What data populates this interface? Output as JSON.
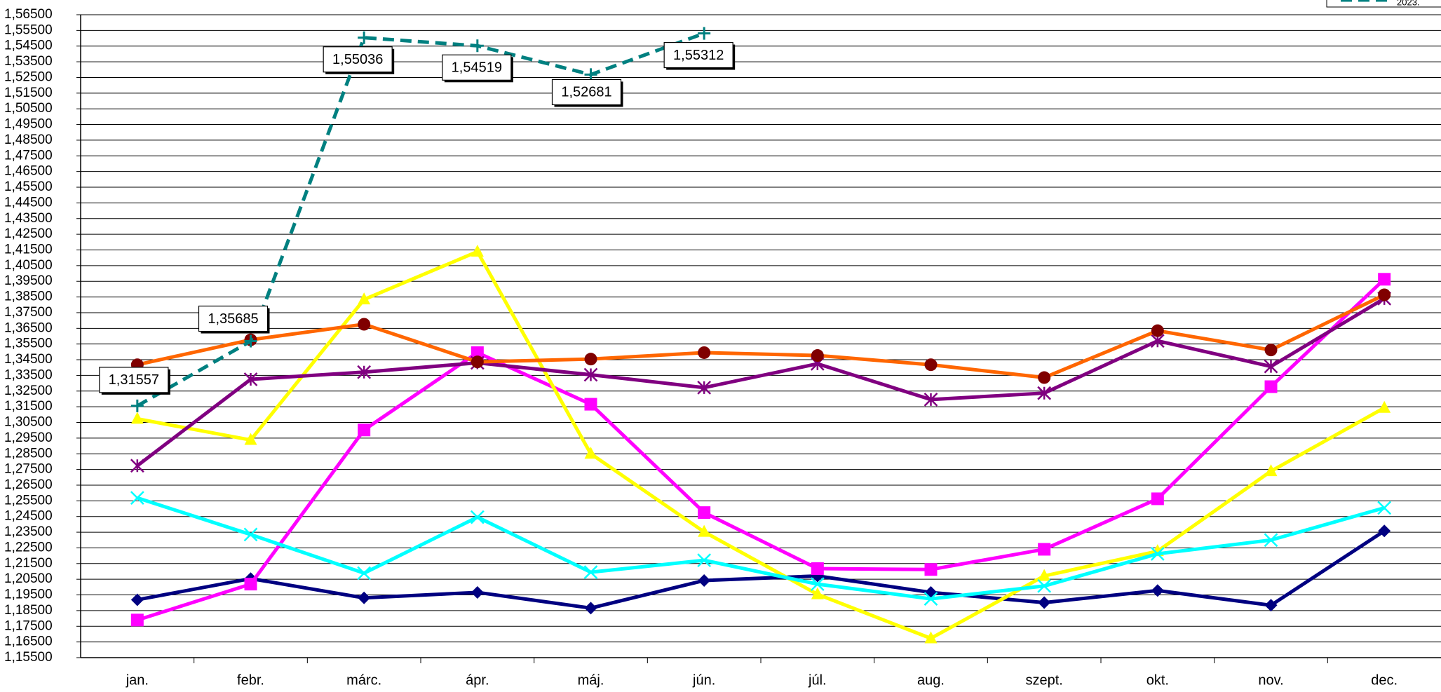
{
  "chart_data": {
    "type": "line",
    "categories": [
      "jan.",
      "febr.",
      "márc.",
      "ápr.",
      "máj.",
      "jún.",
      "júl.",
      "aug.",
      "szept.",
      "okt.",
      "nov.",
      "dec."
    ],
    "ylim": [
      1.155,
      1.565
    ],
    "yticks": [
      {
        "value": 1.155,
        "label": "1,15500"
      },
      {
        "value": 1.165,
        "label": "1,16500"
      },
      {
        "value": 1.175,
        "label": "1,17500"
      },
      {
        "value": 1.185,
        "label": "1,18500"
      },
      {
        "value": 1.195,
        "label": "1,19500"
      },
      {
        "value": 1.205,
        "label": "1,20500"
      },
      {
        "value": 1.215,
        "label": "1,21500"
      },
      {
        "value": 1.225,
        "label": "1,22500"
      },
      {
        "value": 1.235,
        "label": "1,23500"
      },
      {
        "value": 1.245,
        "label": "1,24500"
      },
      {
        "value": 1.255,
        "label": "1,25500"
      },
      {
        "value": 1.265,
        "label": "1,26500"
      },
      {
        "value": 1.275,
        "label": "1,27500"
      },
      {
        "value": 1.285,
        "label": "1,28500"
      },
      {
        "value": 1.295,
        "label": "1,29500"
      },
      {
        "value": 1.305,
        "label": "1,30500"
      },
      {
        "value": 1.315,
        "label": "1,31500"
      },
      {
        "value": 1.325,
        "label": "1,32500"
      },
      {
        "value": 1.335,
        "label": "1,33500"
      },
      {
        "value": 1.345,
        "label": "1,34500"
      },
      {
        "value": 1.355,
        "label": "1,35500"
      },
      {
        "value": 1.365,
        "label": "1,36500"
      },
      {
        "value": 1.375,
        "label": "1,37500"
      },
      {
        "value": 1.385,
        "label": "1,38500"
      },
      {
        "value": 1.395,
        "label": "1,39500"
      },
      {
        "value": 1.405,
        "label": "1,40500"
      },
      {
        "value": 1.415,
        "label": "1,41500"
      },
      {
        "value": 1.425,
        "label": "1,42500"
      },
      {
        "value": 1.435,
        "label": "1,43500"
      },
      {
        "value": 1.445,
        "label": "1,44500"
      },
      {
        "value": 1.455,
        "label": "1,45500"
      },
      {
        "value": 1.465,
        "label": "1,46500"
      },
      {
        "value": 1.475,
        "label": "1,47500"
      },
      {
        "value": 1.485,
        "label": "1,48500"
      },
      {
        "value": 1.495,
        "label": "1,49500"
      },
      {
        "value": 1.505,
        "label": "1,50500"
      },
      {
        "value": 1.515,
        "label": "1,51500"
      },
      {
        "value": 1.525,
        "label": "1,52500"
      },
      {
        "value": 1.535,
        "label": "1,53500"
      },
      {
        "value": 1.545,
        "label": "1,54500"
      },
      {
        "value": 1.555,
        "label": "1,55500"
      },
      {
        "value": 1.565,
        "label": "1,56500"
      }
    ],
    "grid": true,
    "series": [
      {
        "color": "#000080",
        "marker": "diamond",
        "marker_color": "#000080",
        "values": [
          1.1919,
          1.2054,
          1.1931,
          1.1966,
          1.1866,
          1.2042,
          1.2071,
          1.1966,
          1.1901,
          1.1978,
          1.1884,
          1.2358
        ]
      },
      {
        "color": "#ff00ff",
        "marker": "square",
        "marker_color": "#ff00ff",
        "values": [
          1.179,
          1.2019,
          1.3002,
          1.3495,
          1.3166,
          1.2475,
          1.2118,
          1.2112,
          1.2241,
          1.2563,
          1.3278,
          1.3963
        ]
      },
      {
        "color": "#ffff00",
        "marker": "triangle",
        "marker_color": "#ffff00",
        "values": [
          1.3073,
          1.2938,
          1.3834,
          1.4139,
          1.285,
          1.2352,
          1.1954,
          1.1673,
          1.2071,
          1.2229,
          1.2739,
          1.3143
        ]
      },
      {
        "color": "#00ffff",
        "marker": "x",
        "marker_color": "#00ffff",
        "values": [
          1.2569,
          1.2335,
          1.2089,
          1.2446,
          1.2095,
          1.2171,
          1.2019,
          1.1925,
          1.2007,
          1.2212,
          1.23,
          1.2505
        ]
      },
      {
        "color": "#800080",
        "marker": "star",
        "marker_color": "#800080",
        "values": [
          1.2774,
          1.3325,
          1.3371,
          1.343,
          1.3354,
          1.3272,
          1.3424,
          1.3196,
          1.3237,
          1.357,
          1.3407,
          1.384
        ]
      },
      {
        "color": "#ff6600",
        "marker": "circle",
        "marker_color": "#800000",
        "values": [
          1.3418,
          1.3577,
          1.3676,
          1.3436,
          1.3454,
          1.3495,
          1.3477,
          1.3418,
          1.3336,
          1.3635,
          1.3512,
          1.3864
        ]
      },
      {
        "name": "2023.",
        "color": "#008080",
        "dashed": true,
        "marker": "plus",
        "marker_color": "#008080",
        "values": [
          1.31557,
          1.35685,
          1.55036,
          1.54519,
          1.52681,
          1.55312,
          null,
          null,
          null,
          null,
          null,
          null
        ],
        "value_labels": [
          "1,31557",
          "1,35685",
          "1,55036",
          "1,54519",
          "1,52681",
          "1,55312",
          null,
          null,
          null,
          null,
          null,
          null
        ]
      }
    ]
  }
}
